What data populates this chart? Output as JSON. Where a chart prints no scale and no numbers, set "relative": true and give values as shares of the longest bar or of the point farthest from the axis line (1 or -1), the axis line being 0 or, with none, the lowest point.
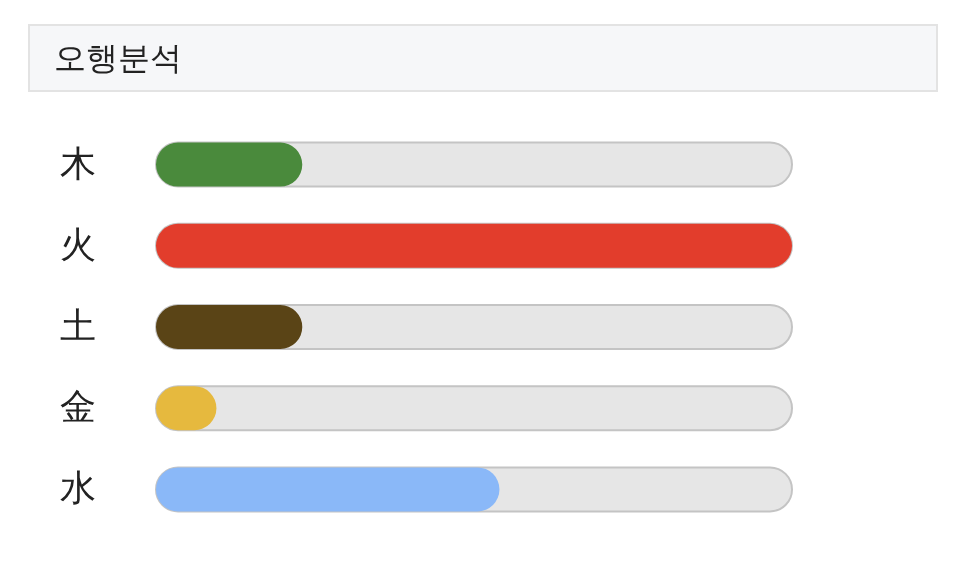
{
  "chart_data": {
    "type": "bar",
    "orientation": "horizontal",
    "relative": true,
    "title": "오행분석",
    "categories": [
      "木",
      "火",
      "土",
      "金",
      "水"
    ],
    "values": [
      0.23,
      1,
      0.23,
      0.095,
      0.54
    ],
    "colors": [
      "#4a8a3c",
      "#e23d2c",
      "#5a4416",
      "#e6b93e",
      "#8ab8f8"
    ]
  }
}
